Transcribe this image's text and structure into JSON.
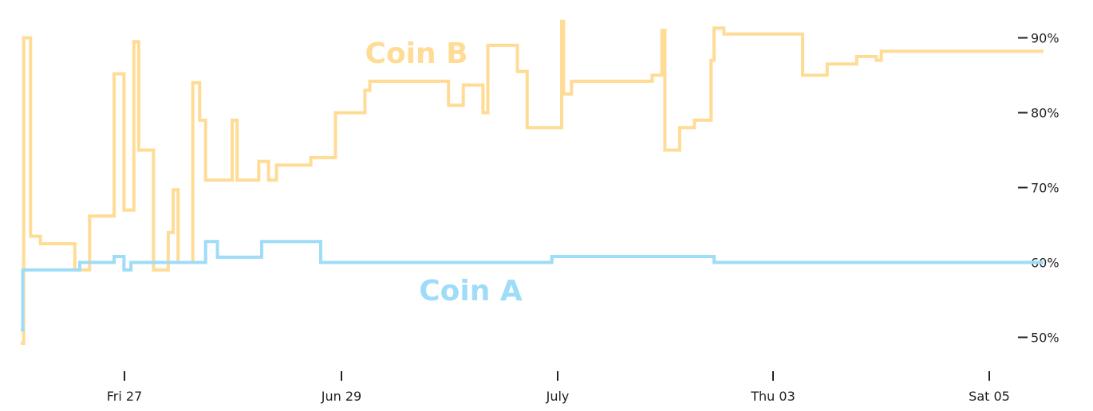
{
  "chart_data": {
    "type": "line",
    "step": true,
    "x_ticks": [
      "Fri 27",
      "Jun 29",
      "July",
      "Thu 03",
      "Sat 05"
    ],
    "y_ticks": [
      "50%",
      "60%",
      "70%",
      "80%",
      "90%"
    ],
    "ylim": [
      45,
      95
    ],
    "xlim": [
      0,
      10.4
    ],
    "y_axis_position": "right",
    "grid": false,
    "series": [
      {
        "name": "Coin B",
        "color": "#ffdc96",
        "points": [
          [
            0.0,
            49.2
          ],
          [
            0.02,
            49.2
          ],
          [
            0.03,
            90.0
          ],
          [
            0.1,
            63.5
          ],
          [
            0.2,
            62.5
          ],
          [
            0.55,
            59.0
          ],
          [
            0.7,
            66.2
          ],
          [
            0.95,
            85.2
          ],
          [
            1.05,
            67.0
          ],
          [
            1.15,
            89.5
          ],
          [
            1.2,
            75.0
          ],
          [
            1.35,
            59.0
          ],
          [
            1.5,
            64.0
          ],
          [
            1.55,
            69.7
          ],
          [
            1.6,
            60.0
          ],
          [
            1.75,
            84.0
          ],
          [
            1.82,
            79.0
          ],
          [
            1.88,
            71.0
          ],
          [
            2.15,
            79.0
          ],
          [
            2.2,
            71.0
          ],
          [
            2.42,
            73.5
          ],
          [
            2.52,
            71.0
          ],
          [
            2.6,
            73.0
          ],
          [
            2.95,
            74.0
          ],
          [
            3.2,
            80.0
          ],
          [
            3.5,
            83.0
          ],
          [
            3.55,
            84.2
          ],
          [
            4.35,
            81.0
          ],
          [
            4.5,
            83.7
          ],
          [
            4.7,
            80.0
          ],
          [
            4.75,
            89.0
          ],
          [
            5.05,
            85.5
          ],
          [
            5.15,
            78.0
          ],
          [
            5.5,
            92.2
          ],
          [
            5.52,
            82.5
          ],
          [
            5.6,
            84.2
          ],
          [
            6.42,
            85.0
          ],
          [
            6.52,
            91.0
          ],
          [
            6.55,
            75.0
          ],
          [
            6.7,
            78.0
          ],
          [
            6.85,
            79.0
          ],
          [
            7.02,
            87.0
          ],
          [
            7.05,
            91.3
          ],
          [
            7.15,
            90.5
          ],
          [
            7.95,
            85.0
          ],
          [
            8.2,
            86.5
          ],
          [
            8.5,
            87.5
          ],
          [
            8.7,
            87.0
          ],
          [
            8.75,
            88.2
          ],
          [
            10.4,
            88.2
          ]
        ]
      },
      {
        "name": "Coin A",
        "color": "#9edcf8",
        "points": [
          [
            0.0,
            51.0
          ],
          [
            0.02,
            59.0
          ],
          [
            0.6,
            60.0
          ],
          [
            0.95,
            60.8
          ],
          [
            1.05,
            59.0
          ],
          [
            1.12,
            60.0
          ],
          [
            1.88,
            62.8
          ],
          [
            2.0,
            60.7
          ],
          [
            2.45,
            62.8
          ],
          [
            3.05,
            60.0
          ],
          [
            5.4,
            60.8
          ],
          [
            7.05,
            60.0
          ],
          [
            10.4,
            60.0
          ]
        ]
      }
    ]
  }
}
